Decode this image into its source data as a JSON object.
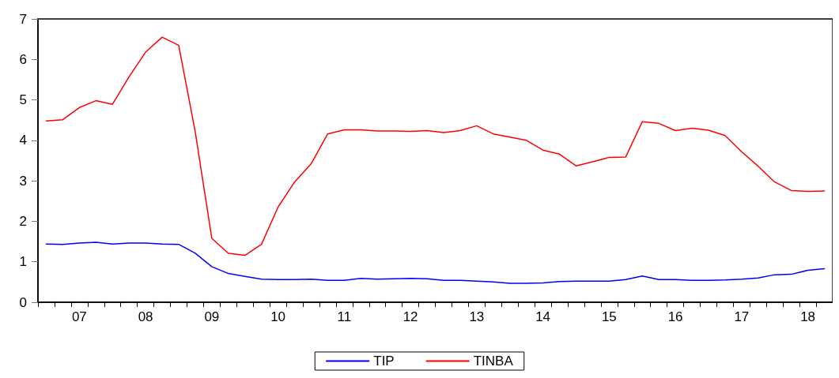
{
  "chart_data": {
    "type": "line",
    "categories": [
      null,
      null,
      "07",
      null,
      null,
      null,
      "08",
      null,
      null,
      null,
      "09",
      null,
      null,
      null,
      "10",
      null,
      null,
      null,
      "11",
      null,
      null,
      null,
      "12",
      null,
      null,
      null,
      "13",
      null,
      null,
      null,
      "14",
      null,
      null,
      null,
      "15",
      null,
      null,
      null,
      "16",
      null,
      null,
      null,
      "17",
      null,
      null,
      null,
      "18",
      null
    ],
    "series": [
      {
        "name": "TIP",
        "color": "#0000ff",
        "values": [
          1.44,
          1.43,
          1.46,
          1.48,
          1.44,
          1.46,
          1.46,
          1.44,
          1.43,
          1.21,
          0.88,
          0.71,
          0.64,
          0.57,
          0.56,
          0.56,
          0.57,
          0.54,
          0.54,
          0.59,
          0.57,
          0.58,
          0.59,
          0.58,
          0.54,
          0.54,
          0.52,
          0.5,
          0.47,
          0.47,
          0.48,
          0.51,
          0.52,
          0.52,
          0.52,
          0.56,
          0.65,
          0.56,
          0.56,
          0.54,
          0.54,
          0.55,
          0.57,
          0.6,
          0.68,
          0.69,
          0.79,
          0.83
        ]
      },
      {
        "name": "TINBA",
        "color": "#ff0000",
        "values": [
          4.48,
          4.51,
          4.81,
          4.98,
          4.89,
          5.57,
          6.18,
          6.55,
          6.35,
          4.21,
          1.58,
          1.21,
          1.16,
          1.43,
          2.35,
          2.97,
          3.42,
          4.16,
          4.26,
          4.26,
          4.23,
          4.23,
          4.22,
          4.24,
          4.19,
          4.24,
          4.36,
          4.16,
          4.08,
          4.0,
          3.76,
          3.66,
          3.37,
          3.47,
          3.58,
          3.59,
          4.46,
          4.42,
          4.24,
          4.3,
          4.25,
          4.12,
          3.72,
          3.36,
          2.97,
          2.76,
          2.74,
          2.75
        ]
      }
    ],
    "ylim": [
      0,
      7
    ],
    "yticks": [
      0,
      1,
      2,
      3,
      4,
      5,
      6,
      7
    ],
    "grid": false,
    "legend": "bottom",
    "marker": "none",
    "line_style": "solid"
  }
}
